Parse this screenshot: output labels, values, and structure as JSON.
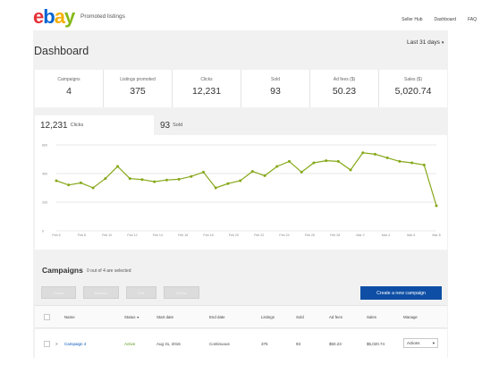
{
  "header": {
    "logo_letters": [
      "e",
      "b",
      "a",
      "y"
    ],
    "logo_colors": [
      "#e53238",
      "#0064d2",
      "#f5af02",
      "#86b817"
    ],
    "app_name": "Promoted listings",
    "links": [
      "Seller Hub",
      "Dashboard",
      "FAQ"
    ]
  },
  "dashboard": {
    "title": "Dashboard",
    "range": "Last 31 days",
    "range_icon": "chevron-down-icon"
  },
  "stats": [
    {
      "label": "Campaigns",
      "value": "4"
    },
    {
      "label": "Listings promoted",
      "value": "375"
    },
    {
      "label": "Clicks",
      "value": "12,231"
    },
    {
      "label": "Sold",
      "value": "93"
    },
    {
      "label": "Ad fees ($)",
      "value": "50.23"
    },
    {
      "label": "Sales ($)",
      "value": "5,020.74"
    }
  ],
  "chart_tabs": [
    {
      "number": "12,231",
      "unit": "Clicks"
    },
    {
      "number": "93",
      "unit": "Sold"
    }
  ],
  "chart_data": {
    "type": "line",
    "title": "",
    "xlabel": "",
    "ylabel": "",
    "y_ticks": [
      "600",
      "400",
      "200",
      "0"
    ],
    "x_ticks": [
      "Feb 6",
      "Feb 8",
      "Feb 10",
      "Feb 12",
      "Feb 14",
      "Feb 16",
      "Feb 18",
      "Feb 20",
      "Feb 22",
      "Feb 24",
      "Feb 26",
      "Feb 28",
      "Mar 2",
      "Mar 4",
      "Mar 6",
      "Mar 8"
    ],
    "ylim": [
      0,
      600
    ],
    "grid": true,
    "color": "#86a819",
    "series": [
      {
        "values": [
          350,
          320,
          335,
          300,
          365,
          450,
          365,
          358,
          343,
          355,
          360,
          380,
          410,
          300,
          330,
          350,
          415,
          385,
          450,
          485,
          410,
          475,
          490,
          485,
          425,
          545,
          535,
          510,
          485,
          475,
          460,
          175
        ]
      }
    ]
  },
  "campaigns": {
    "title": "Campaigns",
    "subtitle": "0 out of 4 are selected",
    "buttons": [
      "Pause",
      "Resume",
      "Edit",
      "Delete"
    ],
    "create_label": "Create a new campaign",
    "columns": [
      "Name",
      "Status",
      "Start date",
      "End date",
      "Listings",
      "Sold",
      "Ad fees",
      "Sales",
      "Manage"
    ],
    "status_sort_icon": "sort-down-icon",
    "rows": [
      {
        "expand": ">",
        "name": "Campaign 4",
        "status": "Active",
        "start": "Aug 31, 2016",
        "end": "Continuous",
        "listings": "375",
        "sold": "93",
        "adfees": "$50.23",
        "sales": "$5,020.74",
        "manage": "Actions"
      }
    ]
  }
}
